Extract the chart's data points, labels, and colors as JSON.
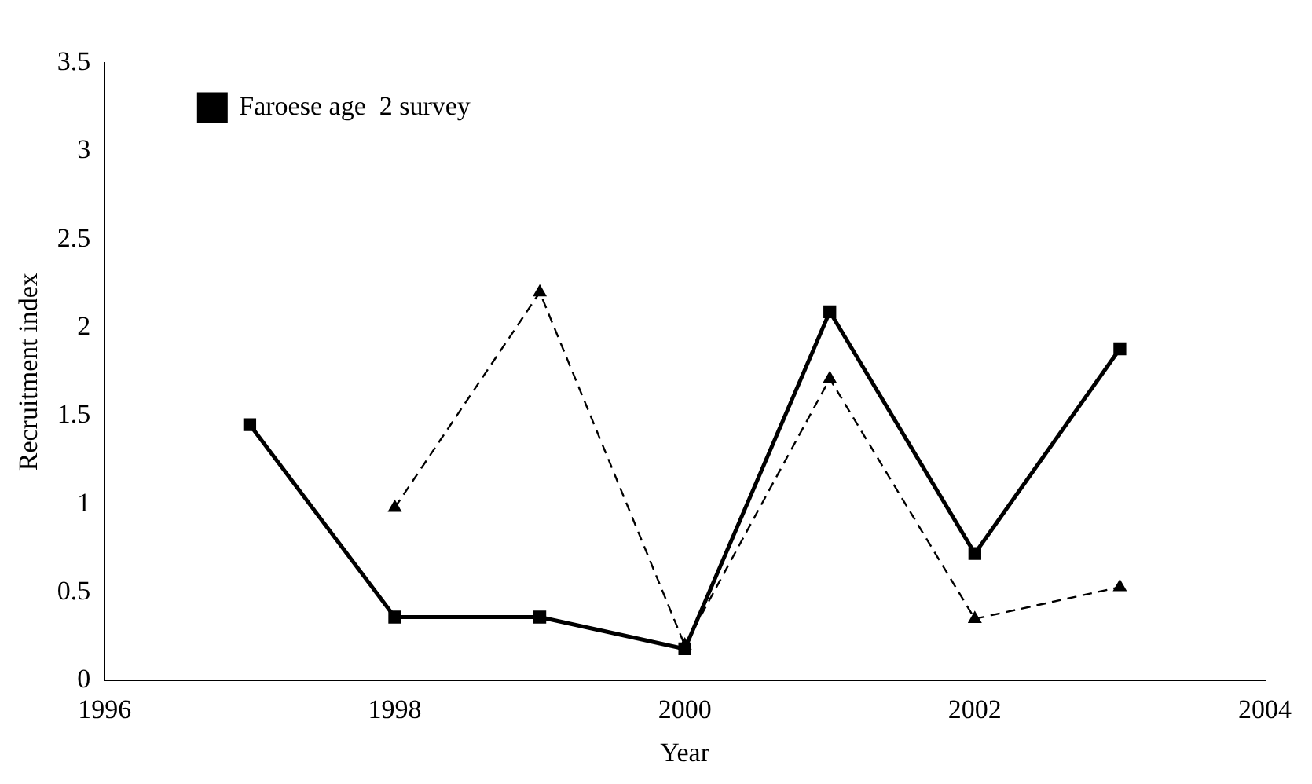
{
  "chart_data": {
    "type": "line",
    "xlabel": "Year",
    "ylabel": "Recruitment index",
    "x": [
      1997,
      1998,
      1999,
      2000,
      2001,
      2002,
      2003
    ],
    "xlim": [
      1996,
      2004
    ],
    "xticks": [
      1996,
      1998,
      2000,
      2002,
      2004
    ],
    "ylim": [
      0,
      3.5
    ],
    "yticks": [
      0,
      0.5,
      1,
      1.5,
      2,
      2.5,
      3,
      3.5
    ],
    "grid": false,
    "legend": "top left",
    "series": [
      {
        "name": "Faroese age  2 survey",
        "color": "#000000",
        "marker": "square",
        "line_style": "solid",
        "values": [
          1.45,
          0.36,
          0.36,
          0.18,
          2.09,
          0.72,
          1.88
        ]
      },
      {
        "color": "#000000",
        "marker": "triangle",
        "line_style": "dashed",
        "values": [
          null,
          0.98,
          2.2,
          0.2,
          1.71,
          0.35,
          0.53
        ]
      }
    ]
  }
}
